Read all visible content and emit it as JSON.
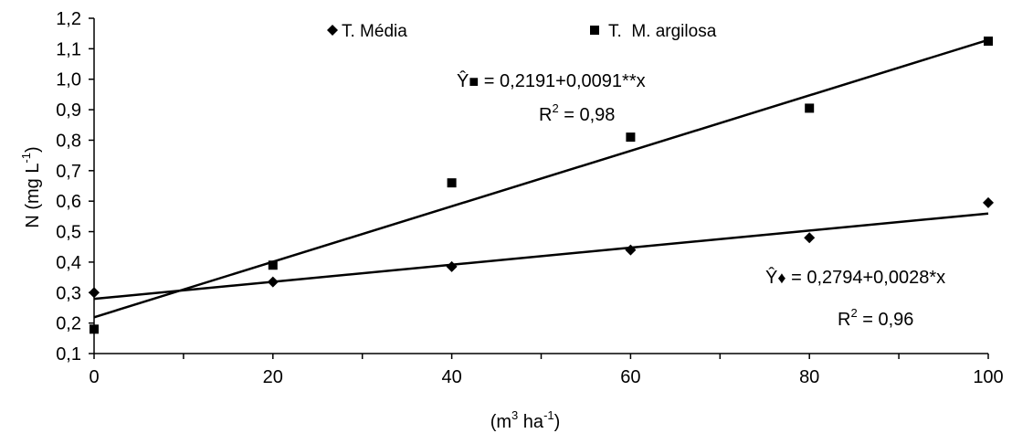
{
  "chart_data": {
    "type": "scatter",
    "x": [
      0,
      20,
      40,
      60,
      80,
      100
    ],
    "xlim": [
      0,
      100
    ],
    "ylim": [
      0.1,
      1.2
    ],
    "xticks": [
      "0",
      "20",
      "40",
      "60",
      "80",
      "100"
    ],
    "yticks": [
      "0,1",
      "0,2",
      "0,3",
      "0,4",
      "0,5",
      "0,6",
      "0,7",
      "0,8",
      "0,9",
      "1,0",
      "1,1",
      "1,2"
    ],
    "ylabel": {
      "main": "N (mg L",
      "sup": "-1",
      "end": ")"
    },
    "xlabel": {
      "main": "(m",
      "sup1": "3",
      "mid": " ha",
      "sup2": "-1",
      "end": ")"
    },
    "grid": false,
    "legend_position": "top-center",
    "series": [
      {
        "name": "T. Média",
        "marker": "diamond",
        "color": "#000000",
        "values": [
          0.3,
          0.335,
          0.385,
          0.44,
          0.48,
          0.595
        ],
        "fit": {
          "intercept": 0.2794,
          "slope": 0.0028
        },
        "equation": {
          "prefix": "Ŷ",
          "marker": "♦",
          "text": " = 0,2794+0,0028*x"
        },
        "r2": {
          "label": "R",
          "sup": "2",
          "value": " = 0,96"
        }
      },
      {
        "name": "T.  M. argilosa",
        "marker": "square",
        "color": "#000000",
        "values": [
          0.18,
          0.39,
          0.66,
          0.81,
          0.905,
          1.125
        ],
        "fit": {
          "intercept": 0.2191,
          "slope": 0.0091
        },
        "equation": {
          "prefix": "Ŷ",
          "marker": "■",
          "text": " = 0,2191+0,0091**x"
        },
        "r2": {
          "label": "R",
          "sup": "2",
          "value": " = 0,98"
        }
      }
    ]
  }
}
